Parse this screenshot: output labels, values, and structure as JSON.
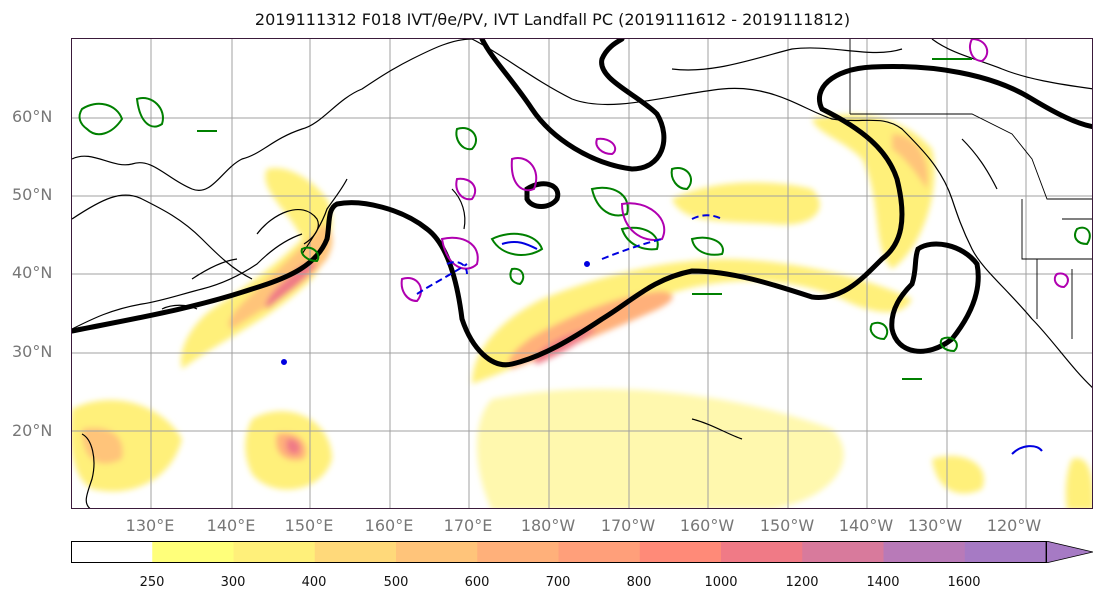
{
  "title": "2019111312 F018 IVT/θe/PV, IVT Landfall PC (2019111612 - 2019111812)",
  "latitude_labels": [
    "60°N",
    "50°N",
    "40°N",
    "30°N",
    "20°N"
  ],
  "longitude_labels": [
    "130°E",
    "140°E",
    "150°E",
    "160°E",
    "170°E",
    "180°W",
    "170°W",
    "160°W",
    "150°W",
    "140°W",
    "130°W",
    "120°W"
  ],
  "colorbar": {
    "ticks": [
      "250",
      "300",
      "400",
      "500",
      "600",
      "700",
      "800",
      "1000",
      "1200",
      "1400",
      "1600"
    ],
    "colors": [
      "#ffffff",
      "#ffff7a",
      "#fff07a",
      "#ffd97a",
      "#ffc47a",
      "#ffb07a",
      "#ff9f7a",
      "#ff8a78",
      "#f07a86",
      "#d87a9c",
      "#b87ab8",
      "#a67ac4"
    ]
  },
  "legend_colors": {
    "ivt_contour": "#000000",
    "theta_e": "#008000",
    "pv_positive": "#b000b0",
    "pv_negative": "#0000e0"
  }
}
